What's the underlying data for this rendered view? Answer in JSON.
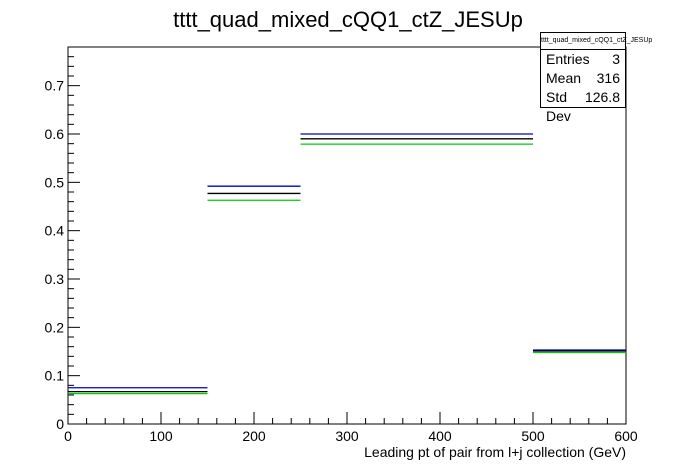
{
  "chart_data": {
    "type": "step",
    "title": "tttt_quad_mixed_cQQ1_ctZ_JESUp",
    "xlabel": "Leading pt of pair from l+j collection (GeV)",
    "ylabel": "",
    "xlim": [
      0,
      600
    ],
    "ylim": [
      0,
      0.78
    ],
    "x_ticks": [
      0,
      100,
      200,
      300,
      400,
      500,
      600
    ],
    "y_ticks": [
      0,
      0.1,
      0.2,
      0.3,
      0.4,
      0.5,
      0.6,
      0.7
    ],
    "x_tick_labels": [
      "0",
      "100",
      "200",
      "300",
      "400",
      "500",
      "600"
    ],
    "y_tick_labels": [
      "0",
      "0.1",
      "0.2",
      "0.3",
      "0.4",
      "0.5",
      "0.6",
      "0.7"
    ],
    "bin_edges": [
      0,
      150,
      250,
      500,
      600
    ],
    "series": [
      {
        "color": "#0000cc",
        "values": [
          0.075,
          0.492,
          0.6,
          0.153
        ]
      },
      {
        "color": "#000000",
        "values": [
          0.067,
          0.477,
          0.59,
          0.151
        ]
      },
      {
        "color": "#00cc00",
        "values": [
          0.063,
          0.463,
          0.579,
          0.148
        ]
      }
    ],
    "grid": false,
    "stats_box": {
      "name": "tttt_quad_mixed_cQQ1_ctZ_JESUp",
      "rows": [
        {
          "label": "Entries",
          "value": "3"
        },
        {
          "label": "Mean",
          "value": "316"
        },
        {
          "label": "Std Dev",
          "value": "126.8"
        }
      ]
    }
  }
}
